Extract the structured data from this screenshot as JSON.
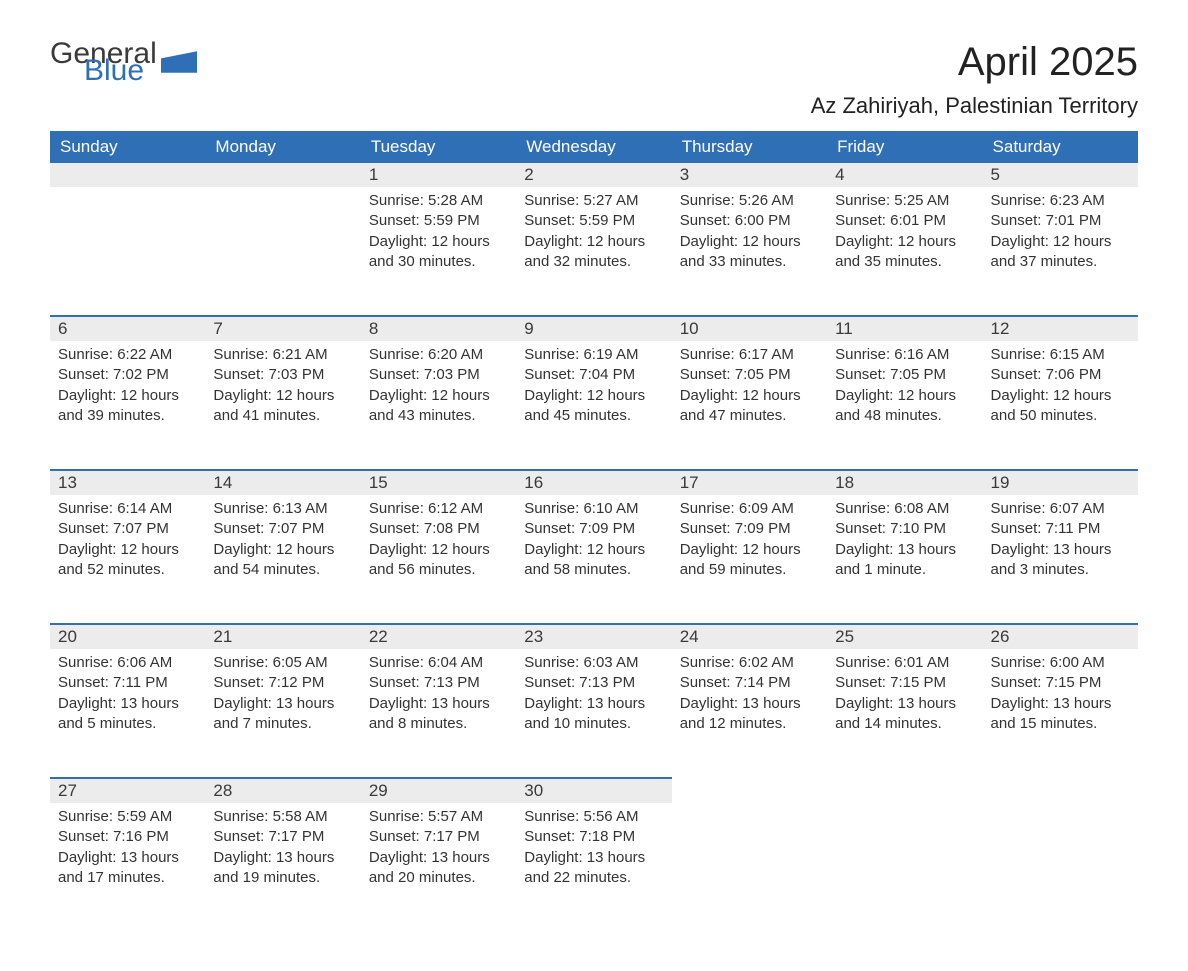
{
  "brand": {
    "word1": "General",
    "word2": "Blue"
  },
  "title": "April 2025",
  "location": "Az Zahiriyah, Palestinian Territory",
  "colors": {
    "primary": "#2f6fb5",
    "header_bg": "#2f6fb5",
    "header_text": "#ffffff",
    "daynum_bg": "#ececec",
    "text": "#333333",
    "background": "#ffffff"
  },
  "typography": {
    "title_fontsize": 40,
    "location_fontsize": 22,
    "header_fontsize": 17,
    "daynum_fontsize": 17,
    "body_fontsize": 15
  },
  "layout": {
    "columns": 7,
    "rows": 5
  },
  "weekdays": [
    "Sunday",
    "Monday",
    "Tuesday",
    "Wednesday",
    "Thursday",
    "Friday",
    "Saturday"
  ],
  "labels": {
    "sunrise": "Sunrise:",
    "sunset": "Sunset:",
    "daylight": "Daylight:"
  },
  "weeks": [
    [
      null,
      null,
      {
        "day": "1",
        "sunrise": "5:28 AM",
        "sunset": "5:59 PM",
        "daylight": "12 hours and 30 minutes."
      },
      {
        "day": "2",
        "sunrise": "5:27 AM",
        "sunset": "5:59 PM",
        "daylight": "12 hours and 32 minutes."
      },
      {
        "day": "3",
        "sunrise": "5:26 AM",
        "sunset": "6:00 PM",
        "daylight": "12 hours and 33 minutes."
      },
      {
        "day": "4",
        "sunrise": "5:25 AM",
        "sunset": "6:01 PM",
        "daylight": "12 hours and 35 minutes."
      },
      {
        "day": "5",
        "sunrise": "6:23 AM",
        "sunset": "7:01 PM",
        "daylight": "12 hours and 37 minutes."
      }
    ],
    [
      {
        "day": "6",
        "sunrise": "6:22 AM",
        "sunset": "7:02 PM",
        "daylight": "12 hours and 39 minutes."
      },
      {
        "day": "7",
        "sunrise": "6:21 AM",
        "sunset": "7:03 PM",
        "daylight": "12 hours and 41 minutes."
      },
      {
        "day": "8",
        "sunrise": "6:20 AM",
        "sunset": "7:03 PM",
        "daylight": "12 hours and 43 minutes."
      },
      {
        "day": "9",
        "sunrise": "6:19 AM",
        "sunset": "7:04 PM",
        "daylight": "12 hours and 45 minutes."
      },
      {
        "day": "10",
        "sunrise": "6:17 AM",
        "sunset": "7:05 PM",
        "daylight": "12 hours and 47 minutes."
      },
      {
        "day": "11",
        "sunrise": "6:16 AM",
        "sunset": "7:05 PM",
        "daylight": "12 hours and 48 minutes."
      },
      {
        "day": "12",
        "sunrise": "6:15 AM",
        "sunset": "7:06 PM",
        "daylight": "12 hours and 50 minutes."
      }
    ],
    [
      {
        "day": "13",
        "sunrise": "6:14 AM",
        "sunset": "7:07 PM",
        "daylight": "12 hours and 52 minutes."
      },
      {
        "day": "14",
        "sunrise": "6:13 AM",
        "sunset": "7:07 PM",
        "daylight": "12 hours and 54 minutes."
      },
      {
        "day": "15",
        "sunrise": "6:12 AM",
        "sunset": "7:08 PM",
        "daylight": "12 hours and 56 minutes."
      },
      {
        "day": "16",
        "sunrise": "6:10 AM",
        "sunset": "7:09 PM",
        "daylight": "12 hours and 58 minutes."
      },
      {
        "day": "17",
        "sunrise": "6:09 AM",
        "sunset": "7:09 PM",
        "daylight": "12 hours and 59 minutes."
      },
      {
        "day": "18",
        "sunrise": "6:08 AM",
        "sunset": "7:10 PM",
        "daylight": "13 hours and 1 minute."
      },
      {
        "day": "19",
        "sunrise": "6:07 AM",
        "sunset": "7:11 PM",
        "daylight": "13 hours and 3 minutes."
      }
    ],
    [
      {
        "day": "20",
        "sunrise": "6:06 AM",
        "sunset": "7:11 PM",
        "daylight": "13 hours and 5 minutes."
      },
      {
        "day": "21",
        "sunrise": "6:05 AM",
        "sunset": "7:12 PM",
        "daylight": "13 hours and 7 minutes."
      },
      {
        "day": "22",
        "sunrise": "6:04 AM",
        "sunset": "7:13 PM",
        "daylight": "13 hours and 8 minutes."
      },
      {
        "day": "23",
        "sunrise": "6:03 AM",
        "sunset": "7:13 PM",
        "daylight": "13 hours and 10 minutes."
      },
      {
        "day": "24",
        "sunrise": "6:02 AM",
        "sunset": "7:14 PM",
        "daylight": "13 hours and 12 minutes."
      },
      {
        "day": "25",
        "sunrise": "6:01 AM",
        "sunset": "7:15 PM",
        "daylight": "13 hours and 14 minutes."
      },
      {
        "day": "26",
        "sunrise": "6:00 AM",
        "sunset": "7:15 PM",
        "daylight": "13 hours and 15 minutes."
      }
    ],
    [
      {
        "day": "27",
        "sunrise": "5:59 AM",
        "sunset": "7:16 PM",
        "daylight": "13 hours and 17 minutes."
      },
      {
        "day": "28",
        "sunrise": "5:58 AM",
        "sunset": "7:17 PM",
        "daylight": "13 hours and 19 minutes."
      },
      {
        "day": "29",
        "sunrise": "5:57 AM",
        "sunset": "7:17 PM",
        "daylight": "13 hours and 20 minutes."
      },
      {
        "day": "30",
        "sunrise": "5:56 AM",
        "sunset": "7:18 PM",
        "daylight": "13 hours and 22 minutes."
      },
      null,
      null,
      null
    ]
  ]
}
